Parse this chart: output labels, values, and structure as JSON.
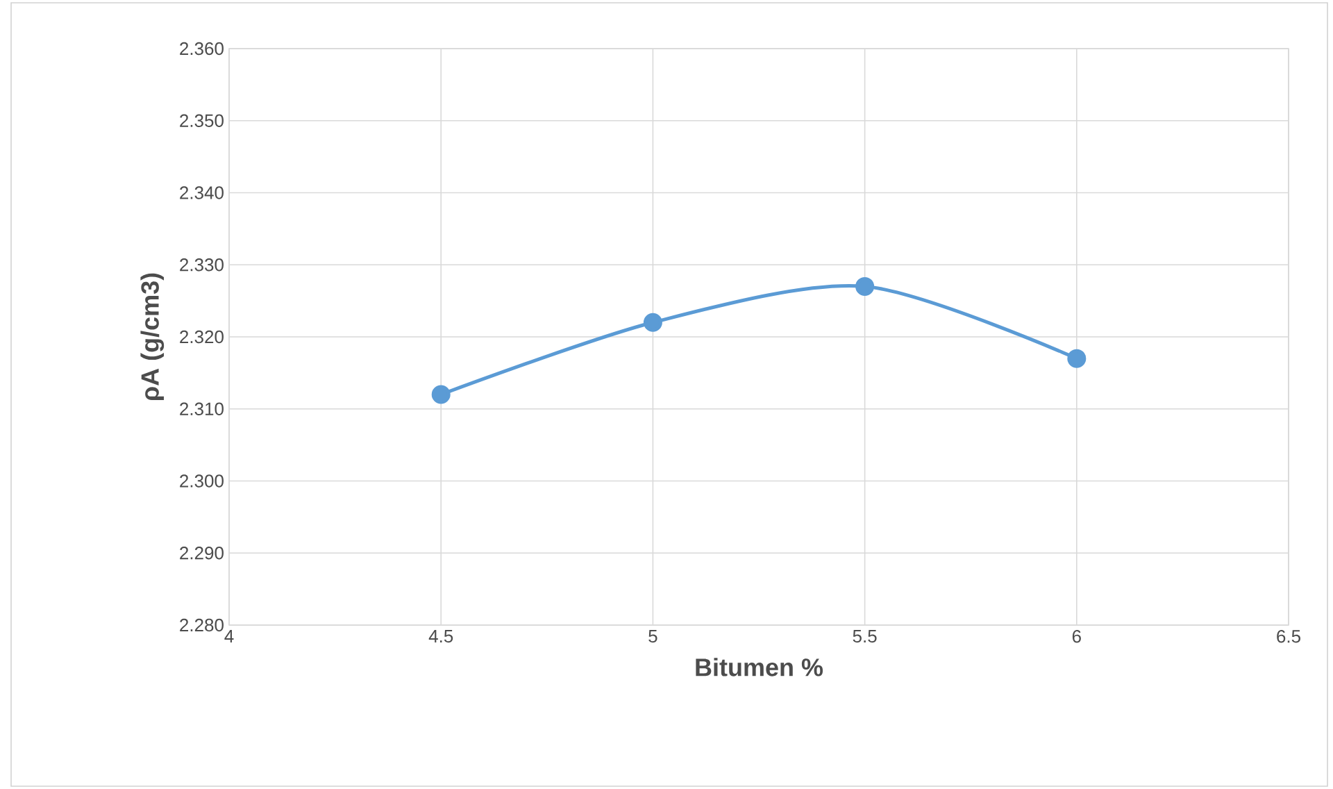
{
  "chart_data": {
    "type": "line",
    "xlabel": "Bitumen %",
    "ylabel": "ρA (g/cm3)",
    "x": [
      4.5,
      5,
      5.5,
      6
    ],
    "series": [
      {
        "color": "#5b9bd5",
        "values": [
          2.312,
          2.322,
          2.327,
          2.317
        ]
      }
    ],
    "xlim": [
      4,
      6.5
    ],
    "xticks": [
      4,
      4.5,
      5,
      5.5,
      6,
      6.5
    ],
    "ylim": [
      2.28,
      2.36
    ],
    "yticks": [
      {
        "value": 2.28,
        "label": "2.280"
      },
      {
        "value": 2.29,
        "label": "2.290"
      },
      {
        "value": 2.3,
        "label": "2.300"
      },
      {
        "value": 2.31,
        "label": "2.310"
      },
      {
        "value": 2.32,
        "label": "2.320"
      },
      {
        "value": 2.33,
        "label": "2.330"
      },
      {
        "value": 2.34,
        "label": "2.340"
      },
      {
        "value": 2.35,
        "label": "2.350"
      },
      {
        "value": 2.36,
        "label": "2.360"
      }
    ],
    "grid": true,
    "marker": "circle",
    "line_style": "solid"
  }
}
